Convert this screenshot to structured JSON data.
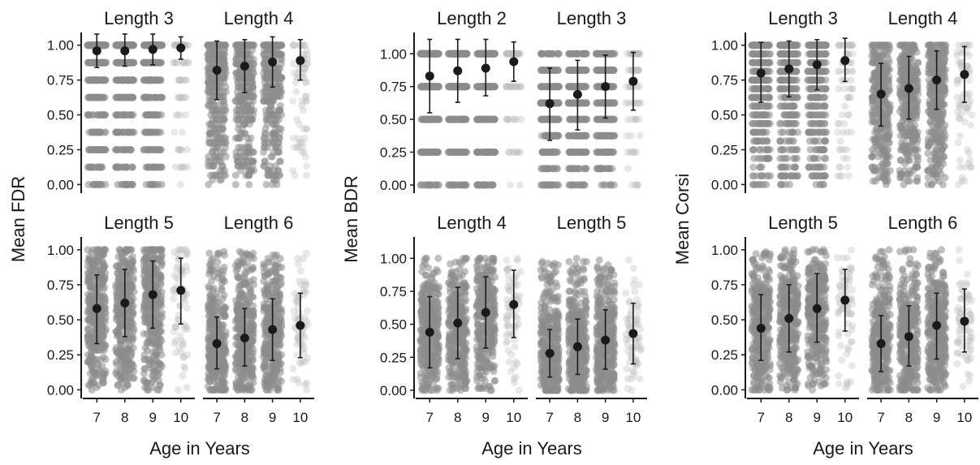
{
  "chart_data": [
    {
      "type": "scatter",
      "ylabel": "Mean FDR",
      "xlabel": "Age in Years",
      "x_categories": [
        "7",
        "8",
        "9",
        "10"
      ],
      "y_ticks": [
        "0.00",
        "0.25",
        "0.50",
        "0.75",
        "1.00"
      ],
      "ylim": [
        -0.05,
        1.08
      ],
      "facets": [
        {
          "title": "Length 3",
          "means": [
            0.96,
            0.96,
            0.97,
            0.98
          ],
          "err_low": [
            0.84,
            0.85,
            0.86,
            0.9
          ],
          "err_high": [
            1.08,
            1.08,
            1.08,
            1.06
          ],
          "jitter_levels": 8
        },
        {
          "title": "Length 4",
          "means": [
            0.82,
            0.85,
            0.88,
            0.89
          ],
          "err_low": [
            0.61,
            0.66,
            0.7,
            0.75
          ],
          "err_high": [
            1.03,
            1.04,
            1.06,
            1.04
          ],
          "jitter_levels": 30
        },
        {
          "title": "Length 5",
          "means": [
            0.58,
            0.62,
            0.68,
            0.71
          ],
          "err_low": [
            0.33,
            0.38,
            0.44,
            0.47
          ],
          "err_high": [
            0.82,
            0.86,
            0.92,
            0.94
          ],
          "jitter_levels": 60
        },
        {
          "title": "Length 6",
          "means": [
            0.33,
            0.37,
            0.43,
            0.46
          ],
          "err_low": [
            0.15,
            0.17,
            0.21,
            0.23
          ],
          "err_high": [
            0.52,
            0.58,
            0.65,
            0.69
          ],
          "jitter_levels": 80
        }
      ]
    },
    {
      "type": "scatter",
      "ylabel": "Mean BDR",
      "xlabel": "Age in Years",
      "x_categories": [
        "7",
        "8",
        "9",
        "10"
      ],
      "y_ticks": [
        "0.00",
        "0.25",
        "0.50",
        "0.75",
        "1.00"
      ],
      "ylim": [
        -0.05,
        1.15
      ],
      "facets": [
        {
          "title": "Length 2",
          "means": [
            0.83,
            0.87,
            0.89,
            0.94
          ],
          "err_low": [
            0.55,
            0.63,
            0.68,
            0.79
          ],
          "err_high": [
            1.11,
            1.11,
            1.11,
            1.09
          ],
          "jitter_levels": 4
        },
        {
          "title": "Length 3",
          "means": [
            0.62,
            0.69,
            0.75,
            0.79
          ],
          "err_low": [
            0.34,
            0.42,
            0.51,
            0.57
          ],
          "err_high": [
            0.89,
            0.95,
            0.99,
            1.01
          ],
          "jitter_levels": 8
        },
        {
          "title": "Length 4",
          "means": [
            0.44,
            0.51,
            0.59,
            0.65
          ],
          "err_low": [
            0.17,
            0.24,
            0.32,
            0.4
          ],
          "err_high": [
            0.71,
            0.78,
            0.86,
            0.91
          ],
          "jitter_levels": 70
        },
        {
          "title": "Length 5",
          "means": [
            0.28,
            0.33,
            0.38,
            0.43
          ],
          "err_low": [
            0.1,
            0.12,
            0.16,
            0.2
          ],
          "err_high": [
            0.46,
            0.54,
            0.61,
            0.66
          ],
          "jitter_levels": 80
        }
      ]
    },
    {
      "type": "scatter",
      "ylabel": "Mean Corsi",
      "xlabel": "Age in Years",
      "x_categories": [
        "7",
        "8",
        "9",
        "10"
      ],
      "y_ticks": [
        "0.00",
        "0.25",
        "0.50",
        "0.75",
        "1.00"
      ],
      "ylim": [
        -0.05,
        1.08
      ],
      "facets": [
        {
          "title": "Length 3",
          "means": [
            0.8,
            0.83,
            0.86,
            0.89
          ],
          "err_low": [
            0.59,
            0.63,
            0.68,
            0.74
          ],
          "err_high": [
            1.02,
            1.03,
            1.04,
            1.05
          ],
          "jitter_levels": 16
        },
        {
          "title": "Length 4",
          "means": [
            0.65,
            0.69,
            0.75,
            0.79
          ],
          "err_low": [
            0.42,
            0.47,
            0.54,
            0.59
          ],
          "err_high": [
            0.87,
            0.92,
            0.96,
            0.99
          ],
          "jitter_levels": 40
        },
        {
          "title": "Length 5",
          "means": [
            0.44,
            0.51,
            0.58,
            0.64
          ],
          "err_low": [
            0.21,
            0.27,
            0.34,
            0.42
          ],
          "err_high": [
            0.68,
            0.75,
            0.83,
            0.86
          ],
          "jitter_levels": 70
        },
        {
          "title": "Length 6",
          "means": [
            0.33,
            0.38,
            0.46,
            0.49
          ],
          "err_low": [
            0.13,
            0.17,
            0.22,
            0.27
          ],
          "err_high": [
            0.53,
            0.6,
            0.69,
            0.72
          ],
          "jitter_levels": 80
        }
      ]
    }
  ],
  "colors": {
    "jitter": "#8c8c8c",
    "jitter_sparse": "#bdbdbd",
    "mean_point": "#1a1a1a",
    "axis": "#1a1a1a"
  }
}
